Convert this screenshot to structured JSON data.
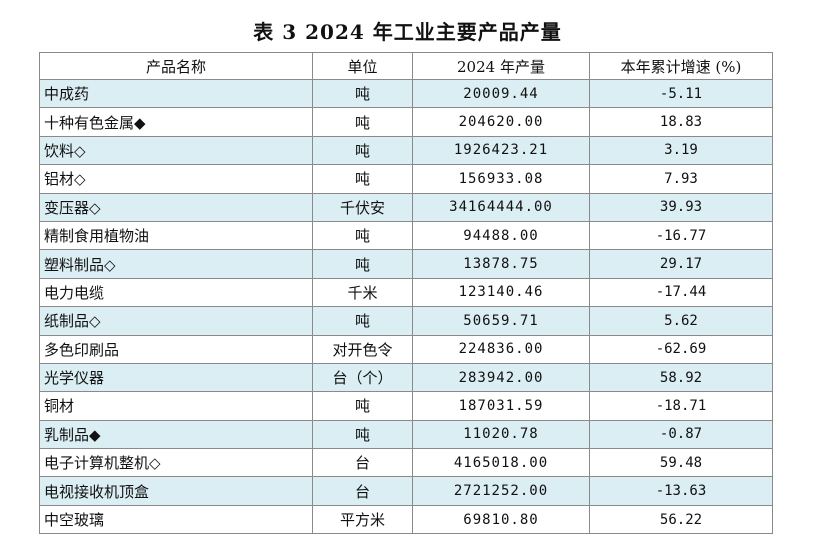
{
  "title": "表 3   2024 年工业主要产品产量",
  "columns": [
    "产品名称",
    "单位",
    "2024 年产量",
    "本年累计增速 (%)"
  ],
  "rows": [
    {
      "name": "中成药",
      "unit": "吨",
      "production": "20009.44",
      "growth": "-5.11"
    },
    {
      "name": "十种有色金属◆",
      "unit": "吨",
      "production": "204620.00",
      "growth": "18.83"
    },
    {
      "name": "饮料◇",
      "unit": "吨",
      "production": "1926423.21",
      "growth": "3.19"
    },
    {
      "name": "铝材◇",
      "unit": "吨",
      "production": "156933.08",
      "growth": "7.93"
    },
    {
      "name": "变压器◇",
      "unit": "千伏安",
      "production": "34164444.00",
      "growth": "39.93"
    },
    {
      "name": "精制食用植物油",
      "unit": "吨",
      "production": "94488.00",
      "growth": "-16.77"
    },
    {
      "name": "塑料制品◇",
      "unit": "吨",
      "production": "13878.75",
      "growth": "29.17"
    },
    {
      "name": "电力电缆",
      "unit": "千米",
      "production": "123140.46",
      "growth": "-17.44"
    },
    {
      "name": "纸制品◇",
      "unit": "吨",
      "production": "50659.71",
      "growth": "5.62"
    },
    {
      "name": "多色印刷品",
      "unit": "对开色令",
      "production": "224836.00",
      "growth": "-62.69"
    },
    {
      "name": "光学仪器",
      "unit": "台（个）",
      "production": "283942.00",
      "growth": "58.92"
    },
    {
      "name": "铜材",
      "unit": "吨",
      "production": "187031.59",
      "growth": "-18.71"
    },
    {
      "name": "乳制品◆",
      "unit": "吨",
      "production": "11020.78",
      "growth": "-0.87"
    },
    {
      "name": "电子计算机整机◇",
      "unit": "台",
      "production": "4165018.00",
      "growth": "59.48"
    },
    {
      "name": "电视接收机顶盒",
      "unit": "台",
      "production": "2721252.00",
      "growth": "-13.63"
    },
    {
      "name": "中空玻璃",
      "unit": "平方米",
      "production": "69810.80",
      "growth": "56.22"
    }
  ],
  "colors": {
    "row_stripe": "#dbeef4",
    "border": "#8a8a8a"
  }
}
